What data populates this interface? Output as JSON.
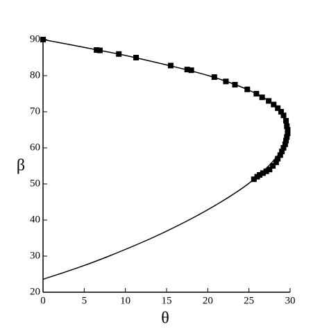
{
  "chart_data": {
    "type": "line-scatter",
    "x_label": "θ",
    "y_label": "β",
    "xlim": [
      0,
      30
    ],
    "ylim": [
      20,
      90
    ],
    "xticks": [
      0,
      5,
      10,
      15,
      20,
      25,
      30
    ],
    "yticks": [
      20,
      30,
      40,
      50,
      60,
      70,
      80,
      90
    ],
    "series": [
      {
        "kind": "line",
        "color": "#000000",
        "x": [
          0,
          6.9,
          11.2,
          20.1,
          25.9,
          28.9,
          29.8,
          29.6,
          29.2,
          27.4,
          24.9,
          21.6,
          17.7,
          13.2,
          8.0,
          4.5,
          1.9,
          0
        ],
        "y": [
          90,
          87,
          85,
          80,
          75,
          70,
          65,
          62,
          60,
          55,
          50,
          45,
          40,
          35,
          30,
          27,
          25,
          23.6
        ]
      },
      {
        "kind": "markers",
        "color": "#000000",
        "x": [
          0,
          6.5,
          6.9,
          9.2,
          11.3,
          15.5,
          17.5,
          18,
          20.8,
          22.2,
          23.3,
          24.8,
          25.9,
          26.6,
          27.4,
          28,
          28.5,
          28.9,
          29.2,
          29.5,
          29.6,
          29.7,
          29.7,
          29.6,
          29.5,
          29.4,
          29.2,
          29,
          28.8,
          28.5,
          28.3,
          27.9,
          27.5,
          27.1,
          26.7,
          26.3,
          26,
          25.6
        ],
        "y": [
          90,
          87.1,
          87,
          86,
          85,
          82.8,
          81.7,
          81.5,
          79.6,
          78.4,
          77.5,
          76.2,
          75,
          74,
          73,
          72,
          71,
          70,
          69,
          67.5,
          66,
          65,
          64,
          63,
          62,
          61,
          60,
          59,
          58,
          57,
          56,
          55,
          54,
          53.5,
          53,
          52.5,
          52,
          51.3
        ]
      }
    ]
  }
}
